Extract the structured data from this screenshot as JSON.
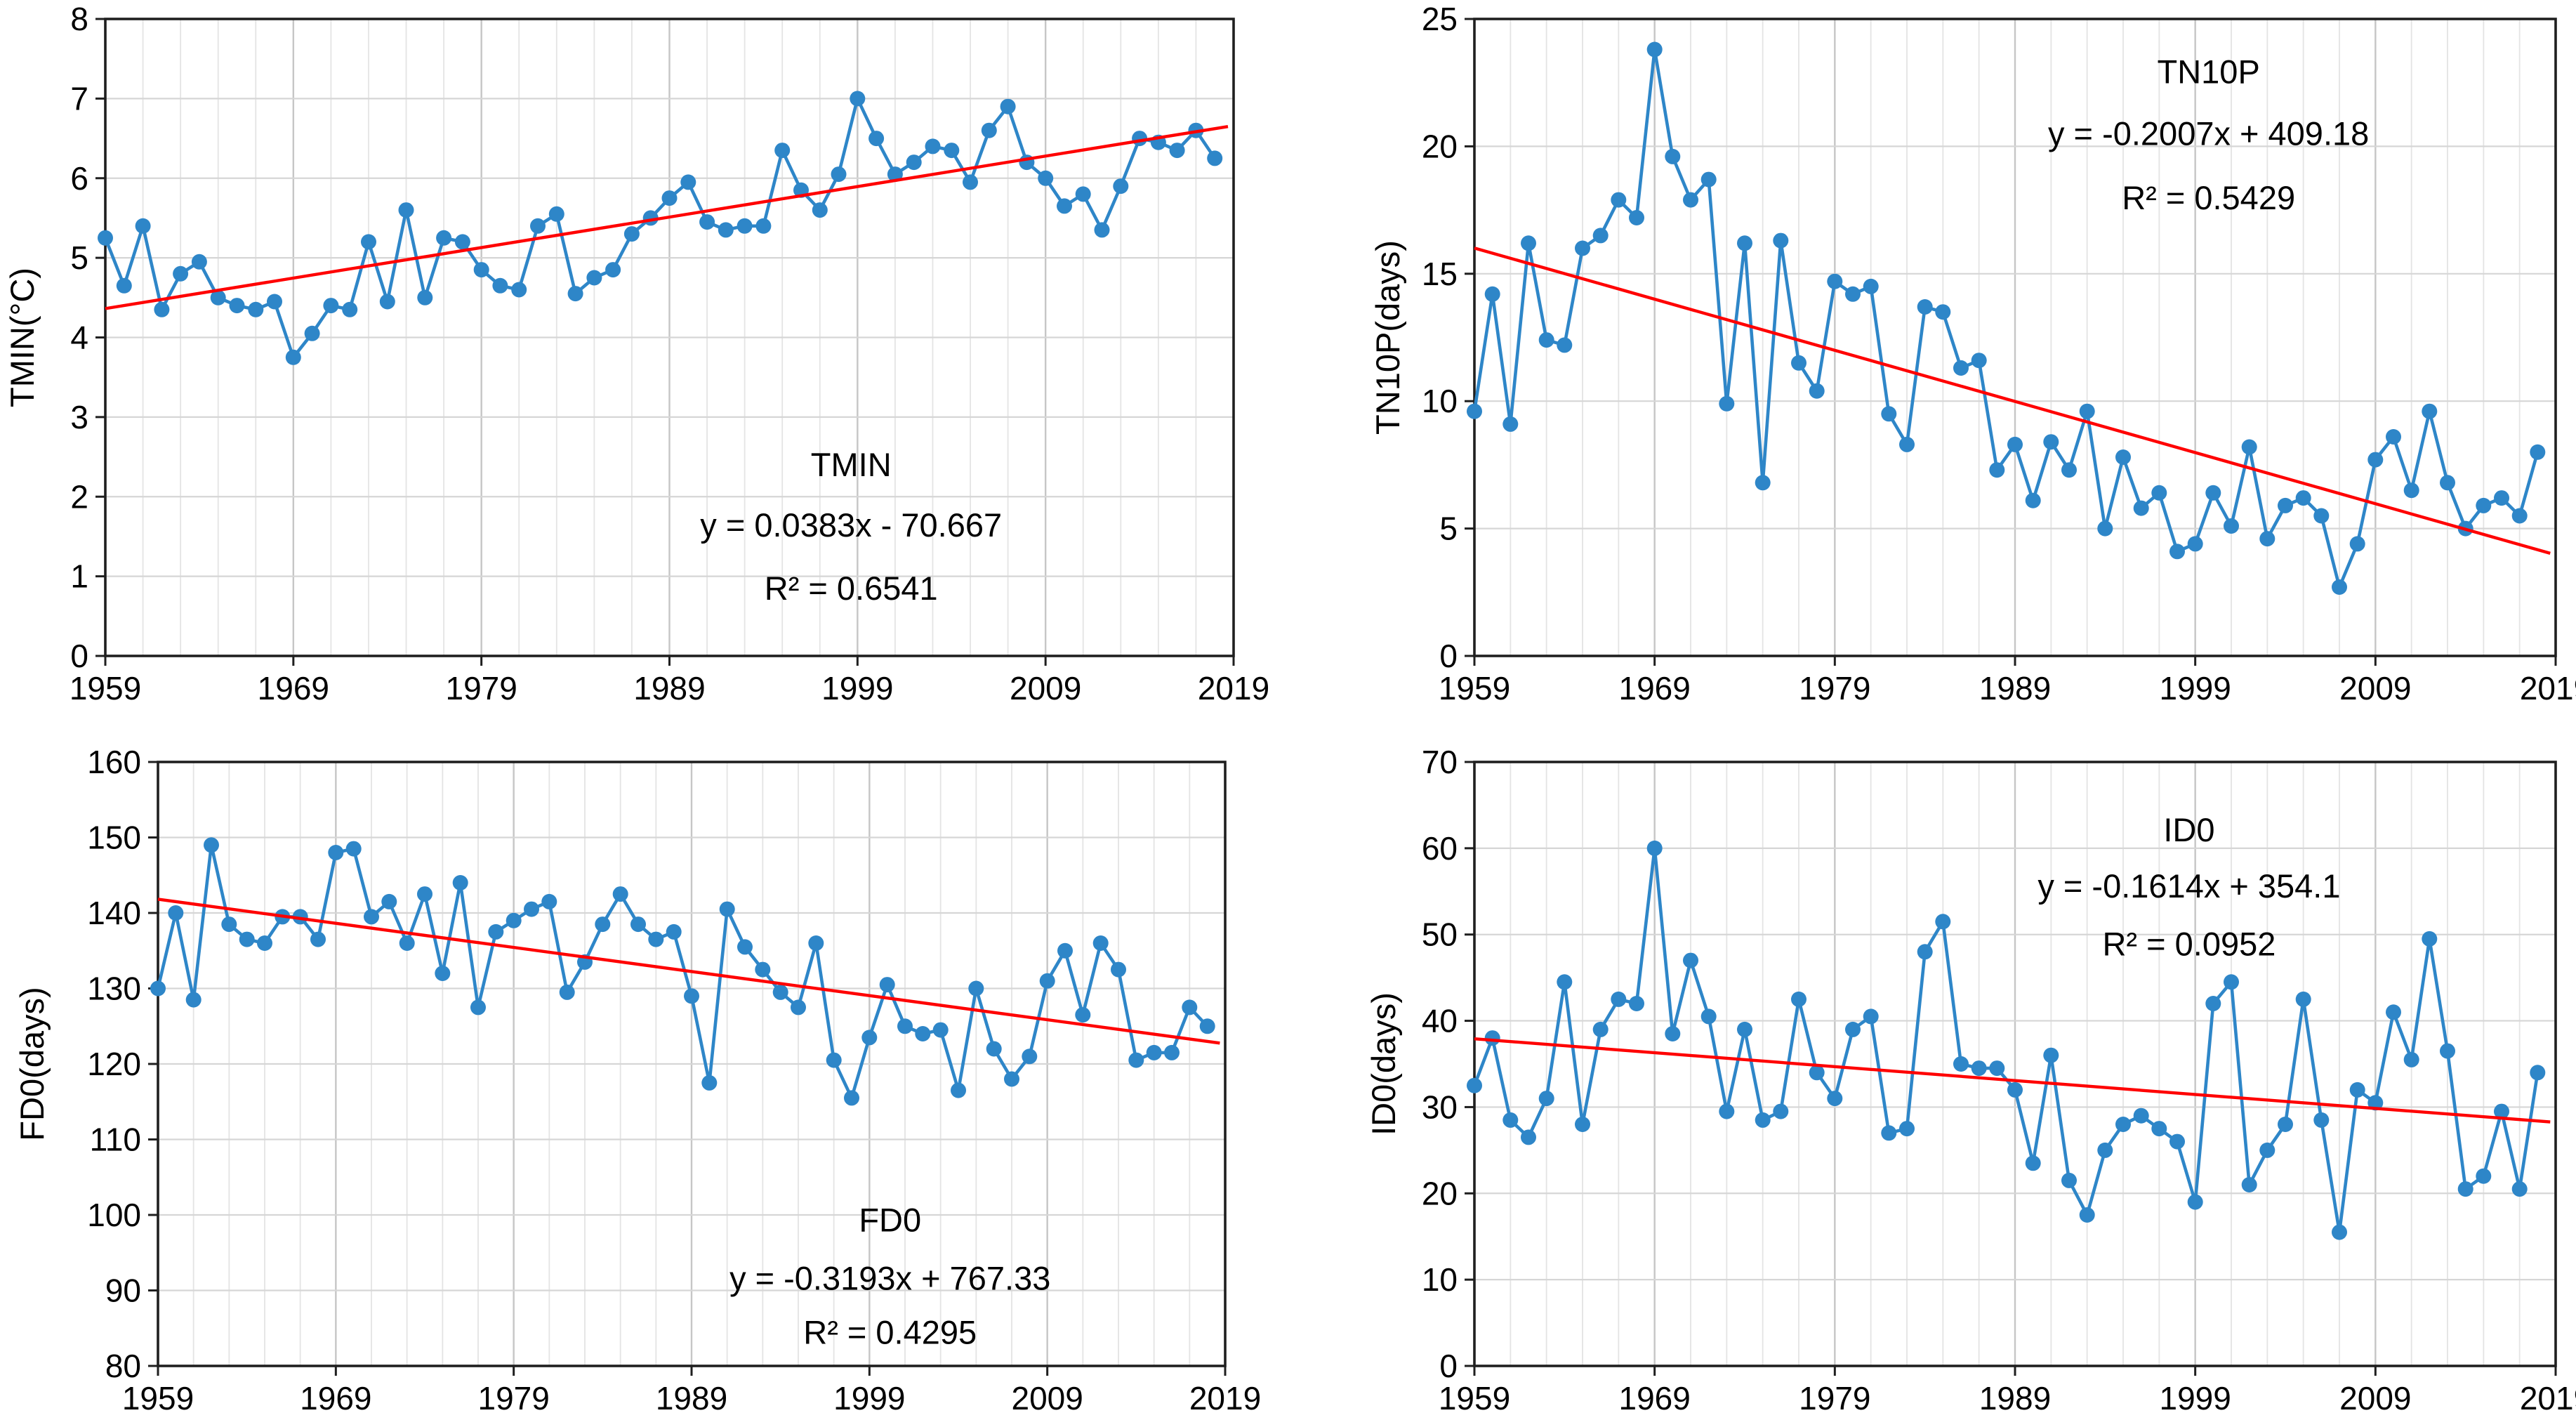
{
  "page": {
    "background": "#ffffff"
  },
  "styles": {
    "series_color": "#2e86c8",
    "trend_color": "#ff0000",
    "minor_grid_color": "#e4e4e4",
    "major_grid_color": "#c6c6c6",
    "horizontal_grid_color": "#d6d6d6",
    "axis_color": "#1f1f1f",
    "text_color": "#000000"
  },
  "chart_data": {
    "type": "line",
    "panels_note": "Four annual climate-index time series (1959-2018) with linear trend lines",
    "years": [
      1959,
      1960,
      1961,
      1962,
      1963,
      1964,
      1965,
      1966,
      1967,
      1968,
      1969,
      1970,
      1971,
      1972,
      1973,
      1974,
      1975,
      1976,
      1977,
      1978,
      1979,
      1980,
      1981,
      1982,
      1983,
      1984,
      1985,
      1986,
      1987,
      1988,
      1989,
      1990,
      1991,
      1992,
      1993,
      1994,
      1995,
      1996,
      1997,
      1998,
      1999,
      2000,
      2001,
      2002,
      2003,
      2004,
      2005,
      2006,
      2007,
      2008,
      2009,
      2010,
      2011,
      2012,
      2013,
      2014,
      2015,
      2016,
      2017,
      2018
    ],
    "x_tick_labels": [
      1959,
      1969,
      1979,
      1989,
      1999,
      2009,
      2019
    ],
    "panels": [
      {
        "id": "tmin",
        "title": "TMIN",
        "ylabel": "TMIN(°C)",
        "equation": "y = 0.0383x - 70.667",
        "r_squared": "R² = 0.6541",
        "ylim": [
          0,
          8
        ],
        "y_ticks": [
          0,
          1,
          2,
          3,
          4,
          5,
          6,
          7,
          8
        ],
        "xlim": [
          1959,
          2019
        ],
        "trend": {
          "slope": 0.0383,
          "intercept": -70.667
        },
        "values": [
          5.25,
          4.65,
          5.4,
          4.35,
          4.8,
          4.95,
          4.5,
          4.4,
          4.35,
          4.45,
          3.75,
          4.05,
          4.4,
          4.35,
          5.2,
          4.45,
          5.6,
          4.5,
          5.25,
          5.2,
          4.85,
          4.65,
          4.6,
          5.4,
          5.55,
          4.55,
          4.75,
          4.85,
          5.3,
          5.5,
          5.75,
          5.95,
          5.45,
          5.35,
          5.4,
          5.4,
          6.35,
          5.85,
          5.6,
          6.05,
          7.0,
          6.5,
          6.05,
          6.2,
          6.4,
          6.35,
          5.95,
          6.6,
          6.9,
          6.2,
          6.0,
          5.65,
          5.8,
          5.35,
          5.9,
          6.5,
          6.45,
          6.35,
          6.6,
          6.25
        ]
      },
      {
        "id": "tn10p",
        "title": "TN10P",
        "ylabel": "TN10P(days)",
        "equation": "y = -0.2007x + 409.18",
        "r_squared": "R² = 0.5429",
        "ylim": [
          0,
          25
        ],
        "y_ticks": [
          0,
          5,
          10,
          15,
          20,
          25
        ],
        "xlim": [
          1959,
          2019
        ],
        "trend": {
          "slope": -0.2007,
          "intercept": 409.18
        },
        "values": [
          9.6,
          14.2,
          9.1,
          16.2,
          12.4,
          12.2,
          16.0,
          16.5,
          17.9,
          17.2,
          23.8,
          19.6,
          17.9,
          18.7,
          9.9,
          16.2,
          6.8,
          16.3,
          11.5,
          10.4,
          14.7,
          14.2,
          14.5,
          9.5,
          8.3,
          13.7,
          13.5,
          11.3,
          11.6,
          7.3,
          8.3,
          6.1,
          8.4,
          7.3,
          9.6,
          5.0,
          7.8,
          5.8,
          6.4,
          4.1,
          4.4,
          6.4,
          5.1,
          8.2,
          4.6,
          5.9,
          6.2,
          5.5,
          2.7,
          4.4,
          7.7,
          8.6,
          6.5,
          9.6,
          6.8,
          5.0,
          5.9,
          6.2,
          5.5,
          8.0
        ]
      },
      {
        "id": "fd0",
        "title": "FD0",
        "ylabel": "FD0(days)",
        "equation": "y = -0.3193x + 767.33",
        "r_squared": "R² = 0.4295",
        "ylim": [
          80,
          160
        ],
        "y_ticks": [
          80,
          90,
          100,
          110,
          120,
          130,
          140,
          150,
          160
        ],
        "xlim": [
          1959,
          2019
        ],
        "trend": {
          "slope": -0.3193,
          "intercept": 767.33
        },
        "values": [
          130,
          140,
          128.5,
          149,
          138.5,
          136.5,
          136,
          139.5,
          139.5,
          136.5,
          148,
          148.5,
          139.5,
          141.5,
          136,
          142.5,
          132,
          144,
          127.5,
          137.5,
          139,
          140.5,
          141.5,
          129.5,
          133.5,
          138.5,
          142.5,
          138.5,
          136.5,
          137.5,
          129,
          117.5,
          140.5,
          135.5,
          132.5,
          129.5,
          127.5,
          136,
          120.5,
          115.5,
          123.5,
          130.5,
          125,
          124,
          124.5,
          116.5,
          130,
          122,
          118,
          121,
          131,
          135,
          126.5,
          136,
          132.5,
          120.5,
          121.5,
          121.5,
          127.5,
          125
        ]
      },
      {
        "id": "id0",
        "title": "ID0",
        "ylabel": "ID0(days)",
        "equation": "y = -0.1614x + 354.1",
        "r_squared": "R² = 0.0952",
        "ylim": [
          0,
          70
        ],
        "y_ticks": [
          0,
          10,
          20,
          30,
          40,
          50,
          60,
          70
        ],
        "xlim": [
          1959,
          2019
        ],
        "trend": {
          "slope": -0.1614,
          "intercept": 354.1
        },
        "values": [
          32.5,
          38,
          28.5,
          26.5,
          31,
          44.5,
          28,
          39,
          42.5,
          42,
          60,
          38.5,
          47,
          40.5,
          29.5,
          39,
          28.5,
          29.5,
          42.5,
          34,
          31,
          39,
          40.5,
          27,
          27.5,
          48,
          51.5,
          35,
          34.5,
          34.5,
          32,
          23.5,
          36,
          21.5,
          17.5,
          25,
          28,
          29,
          27.5,
          26,
          19,
          42,
          44.5,
          21,
          25,
          28,
          42.5,
          28.5,
          15.5,
          32,
          30.5,
          41,
          35.5,
          49.5,
          36.5,
          20.5,
          22,
          29.5,
          20.5,
          34
        ]
      }
    ]
  }
}
